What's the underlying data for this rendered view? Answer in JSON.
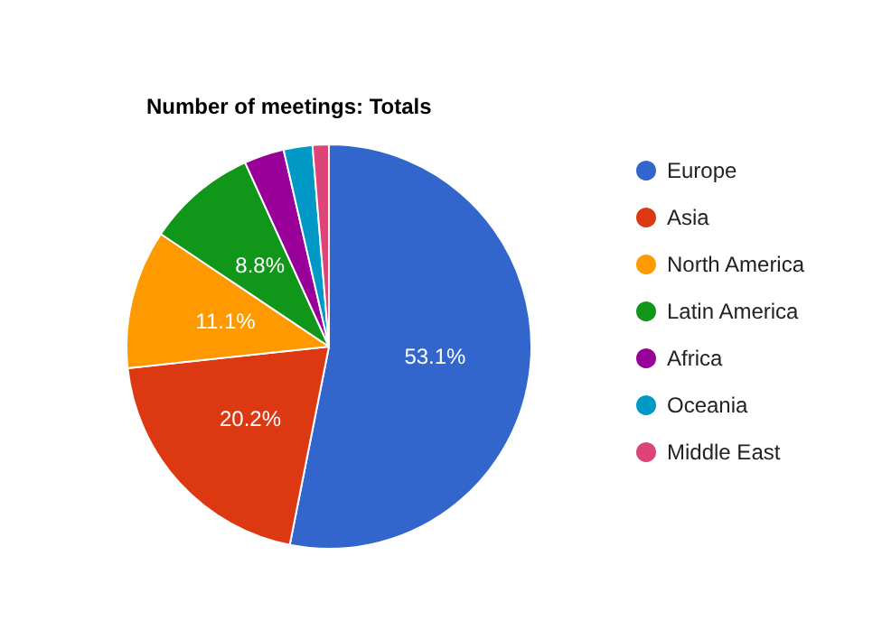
{
  "chart_data": {
    "type": "pie",
    "title": "Number of meetings: Totals",
    "categories": [
      "Europe",
      "Asia",
      "North America",
      "Latin America",
      "Africa",
      "Oceania",
      "Middle East"
    ],
    "values": [
      53.1,
      20.2,
      11.1,
      8.8,
      3.2,
      2.3,
      1.3
    ],
    "colors": [
      "#3366cc",
      "#dc3912",
      "#ff9900",
      "#109618",
      "#990099",
      "#0099c6",
      "#dd4477"
    ],
    "value_labels": [
      "53.1%",
      "20.2%",
      "11.1%",
      "8.8%",
      null,
      null,
      null
    ],
    "legend": "right"
  }
}
